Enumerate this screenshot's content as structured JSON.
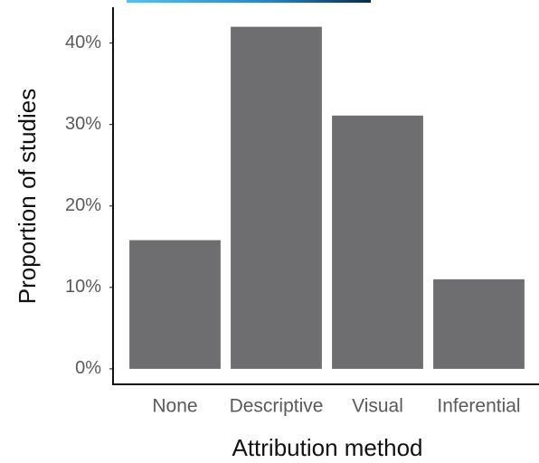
{
  "chart_data": {
    "type": "bar",
    "x_label": "Attribution method",
    "y_label": "Proportion of studies",
    "categories": [
      "None",
      "Descriptive",
      "Visual",
      "Inferential"
    ],
    "values": [
      15.8,
      42,
      31.1,
      11
    ],
    "color": "#6e6e70",
    "ylim": [
      -1.9,
      44.4
    ],
    "yticks": [
      {
        "value": 0,
        "label": "0%"
      },
      {
        "value": 10,
        "label": "10%"
      },
      {
        "value": 20,
        "label": "20%"
      },
      {
        "value": 30,
        "label": "30%"
      },
      {
        "value": 40,
        "label": "40%"
      }
    ],
    "grid": false
  }
}
